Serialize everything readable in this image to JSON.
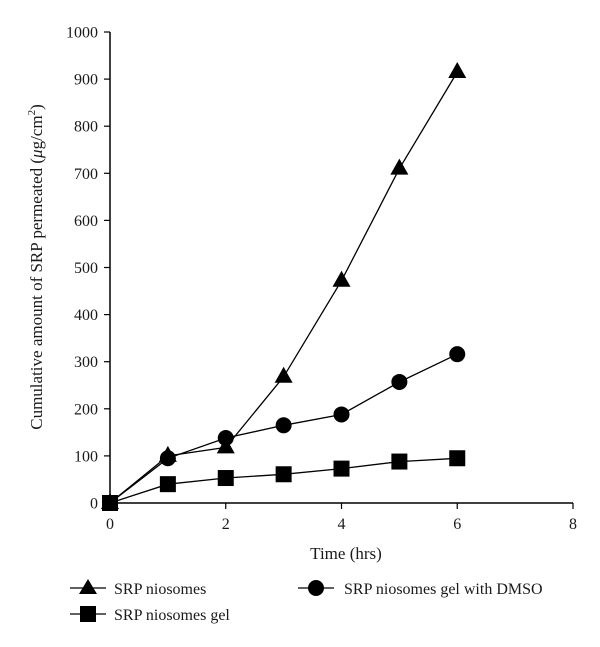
{
  "chart_data": {
    "type": "line",
    "title": "",
    "xlabel": "Time (hrs)",
    "ylabel": {
      "main": "Cumulative amount of SRP permeated (",
      "unit_mu": "μ",
      "unit_rest": "g/cm",
      "unit_sup": "2",
      "close": ")"
    },
    "xlim": [
      0,
      8
    ],
    "ylim": [
      0,
      1000
    ],
    "xticks": [
      "0",
      "2",
      "4",
      "6",
      "8"
    ],
    "yticks": [
      "0",
      "100",
      "200",
      "300",
      "400",
      "500",
      "600",
      "700",
      "800",
      "900",
      "1000"
    ],
    "grid": false,
    "legend_position": "bottom",
    "series": [
      {
        "name": "SRP niosomes",
        "marker": "triangle",
        "x": [
          0,
          1,
          2,
          3,
          4,
          5,
          6
        ],
        "values": [
          0,
          100,
          118,
          268,
          472,
          710,
          915
        ]
      },
      {
        "name": "SRP niosomes gel with DMSO",
        "marker": "circle",
        "x": [
          0,
          1,
          2,
          3,
          4,
          5,
          6
        ],
        "values": [
          0,
          95,
          138,
          165,
          188,
          257,
          316
        ]
      },
      {
        "name": "SRP niosomes gel",
        "marker": "square",
        "x": [
          0,
          1,
          2,
          3,
          4,
          5,
          6
        ],
        "values": [
          0,
          40,
          53,
          61,
          73,
          88,
          95
        ]
      }
    ],
    "colors": {
      "line": "#000000",
      "marker": "#000000"
    }
  }
}
